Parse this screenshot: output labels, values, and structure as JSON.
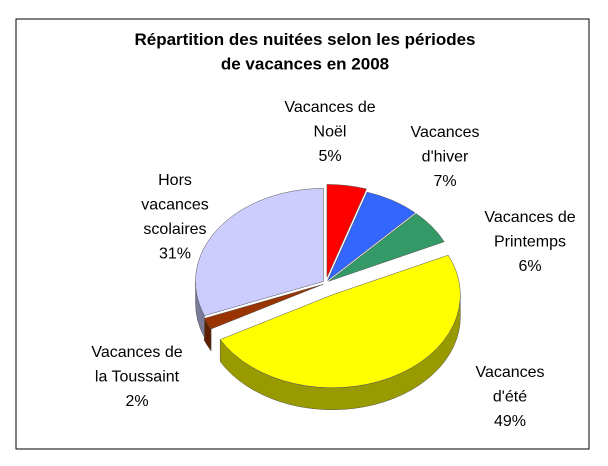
{
  "chart_data": {
    "type": "pie3d",
    "title": "Répartition des nuitées selon les périodes\nde vacances en 2008",
    "categories": [
      "Vacances de\nNoël",
      "Vacances\nd'hiver",
      "Vacances de\nPrintemps",
      "Vacances\nd'été",
      "Vacances de\nla Toussaint",
      "Hors\nvacances\nscolaires"
    ],
    "values": [
      5,
      7,
      6,
      49,
      2,
      31
    ],
    "value_labels": [
      "5%",
      "7%",
      "6%",
      "49%",
      "2%",
      "31%"
    ],
    "colors": [
      "#ff0000",
      "#3366ff",
      "#339966",
      "#ffff00",
      "#993300",
      "#ccccff"
    ]
  }
}
